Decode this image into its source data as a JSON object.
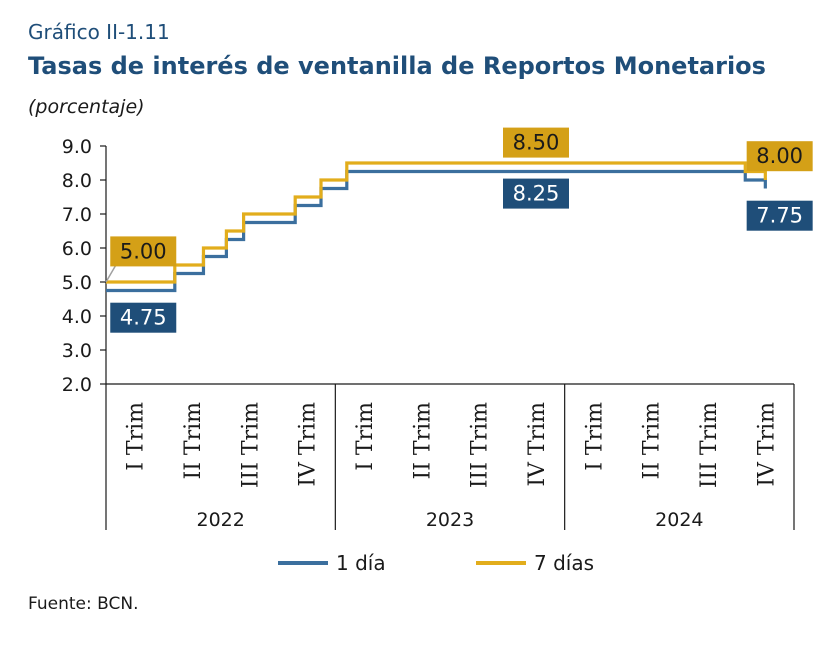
{
  "header": {
    "label": "Gráfico II-1.11",
    "title": "Tasas de interés de ventanilla de Reportos Monetarios",
    "unit": "(porcentaje)"
  },
  "footer": {
    "source": "Fuente: BCN."
  },
  "colors": {
    "one_day": "#3b6f9e",
    "seven_day": "#e2ad1c",
    "label_blue_bg": "#1f4e79",
    "label_gold_bg": "#d4a017"
  },
  "chart_data": {
    "type": "line",
    "ylim": [
      2.0,
      9.0
    ],
    "yticks": [
      "2.0",
      "3.0",
      "4.0",
      "5.0",
      "6.0",
      "7.0",
      "8.0",
      "9.0"
    ],
    "grid": false,
    "legend_position": "bottom",
    "quarters": [
      {
        "label": "I Trim",
        "year": "2022"
      },
      {
        "label": "II Trim",
        "year": "2022"
      },
      {
        "label": "III Trim",
        "year": "2022"
      },
      {
        "label": "IV Trim",
        "year": "2022"
      },
      {
        "label": "I Trim",
        "year": "2023"
      },
      {
        "label": "II Trim",
        "year": "2023"
      },
      {
        "label": "III Trim",
        "year": "2023"
      },
      {
        "label": "IV Trim",
        "year": "2023"
      },
      {
        "label": "I Trim",
        "year": "2024"
      },
      {
        "label": "II Trim",
        "year": "2024"
      },
      {
        "label": "III Trim",
        "year": "2024"
      },
      {
        "label": "IV Trim",
        "year": "2024"
      }
    ],
    "years": [
      "2022",
      "2023",
      "2024"
    ],
    "series": [
      {
        "name": "1 día",
        "color_key": "one_day",
        "steps": [
          {
            "q": 0.0,
            "v": 4.75
          },
          {
            "q": 1.2,
            "v": 5.25
          },
          {
            "q": 1.7,
            "v": 5.75
          },
          {
            "q": 2.1,
            "v": 6.25
          },
          {
            "q": 2.4,
            "v": 6.75
          },
          {
            "q": 3.3,
            "v": 7.25
          },
          {
            "q": 3.75,
            "v": 7.75
          },
          {
            "q": 4.2,
            "v": 8.25
          },
          {
            "q": 11.15,
            "v": 8.0
          },
          {
            "q": 11.5,
            "v": 7.75
          }
        ],
        "end_q": 12.0
      },
      {
        "name": "7 días",
        "color_key": "seven_day",
        "steps": [
          {
            "q": 0.0,
            "v": 5.0
          },
          {
            "q": 1.2,
            "v": 5.5
          },
          {
            "q": 1.7,
            "v": 6.0
          },
          {
            "q": 2.1,
            "v": 6.5
          },
          {
            "q": 2.4,
            "v": 7.0
          },
          {
            "q": 3.3,
            "v": 7.5
          },
          {
            "q": 3.75,
            "v": 8.0
          },
          {
            "q": 4.2,
            "v": 8.5
          },
          {
            "q": 11.15,
            "v": 8.25
          },
          {
            "q": 11.5,
            "v": 8.0
          }
        ],
        "end_q": 12.0
      }
    ],
    "data_labels": [
      {
        "text": "5.00",
        "q": 0.45,
        "v": 5.0,
        "style": "gold",
        "box_q": 0.65,
        "box_v": 5.9,
        "leader": true
      },
      {
        "text": "4.75",
        "q": 0.65,
        "v": 4.75,
        "style": "blue",
        "box_q": 0.65,
        "box_v": 3.95,
        "leader": false
      },
      {
        "text": "8.50",
        "q": 7.5,
        "v": 8.5,
        "style": "gold",
        "box_q": 7.5,
        "box_v": 9.1,
        "leader": false
      },
      {
        "text": "8.25",
        "q": 7.5,
        "v": 8.25,
        "style": "blue",
        "box_q": 7.5,
        "box_v": 7.6,
        "leader": false
      },
      {
        "text": "8.00",
        "q": 11.75,
        "v": 8.0,
        "style": "gold",
        "box_q": 11.75,
        "box_v": 8.7,
        "leader": false
      },
      {
        "text": "7.75",
        "q": 11.75,
        "v": 7.75,
        "style": "blue",
        "box_q": 11.75,
        "box_v": 6.95,
        "leader": false
      }
    ]
  }
}
